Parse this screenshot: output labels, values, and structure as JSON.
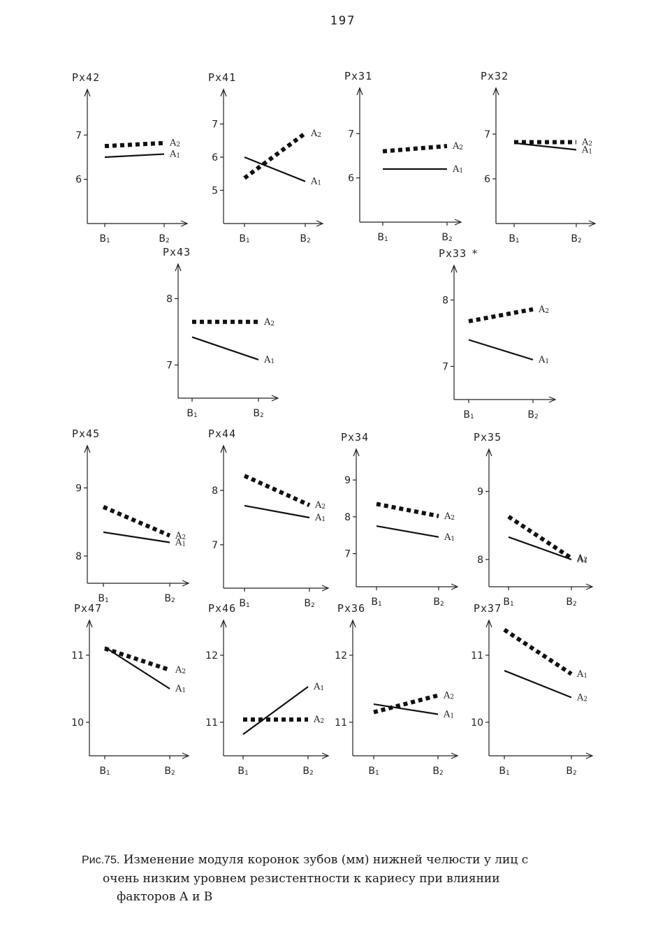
{
  "page_number": "197",
  "caption": {
    "figure_number": "Рис.75.",
    "line1": "Изменение модуля коронок зубов (мм) нижней челюсти у лиц с",
    "line2": "очень низким уровнем резистентности к кариесу при влиянии",
    "line3": "факторов А и В"
  },
  "chart_data": [
    {
      "type": "line",
      "title": "Px42",
      "categories": [
        "B1",
        "B2"
      ],
      "yticks": [
        6,
        7
      ],
      "ylim": [
        5.0,
        8.0
      ],
      "series": [
        {
          "name": "A2",
          "style": "dotted",
          "values": [
            6.75,
            6.82
          ]
        },
        {
          "name": "A1",
          "style": "solid",
          "values": [
            6.5,
            6.57
          ]
        }
      ]
    },
    {
      "type": "line",
      "title": "Px41",
      "categories": [
        "B1",
        "B2"
      ],
      "yticks": [
        5,
        6,
        7
      ],
      "ylim": [
        4.0,
        8.0
      ],
      "series": [
        {
          "name": "A2",
          "style": "dotted",
          "values": [
            5.37,
            6.72
          ]
        },
        {
          "name": "A1",
          "style": "solid",
          "values": [
            6.0,
            5.27
          ]
        }
      ]
    },
    {
      "type": "line",
      "title": "Px31",
      "categories": [
        "B1",
        "B2"
      ],
      "yticks": [
        6,
        7
      ],
      "ylim": [
        5.0,
        8.0
      ],
      "series": [
        {
          "name": "A2",
          "style": "dotted",
          "values": [
            6.6,
            6.72
          ]
        },
        {
          "name": "A1",
          "style": "solid",
          "values": [
            6.2,
            6.2
          ]
        }
      ]
    },
    {
      "type": "line",
      "title": "Px32",
      "categories": [
        "B1",
        "B2"
      ],
      "yticks": [
        6,
        7
      ],
      "ylim": [
        5.0,
        8.0
      ],
      "series": [
        {
          "name": "A2",
          "style": "dotted",
          "values": [
            6.82,
            6.82
          ]
        },
        {
          "name": "A1",
          "style": "solid",
          "values": [
            6.8,
            6.65
          ]
        }
      ]
    },
    {
      "type": "line",
      "title": "Px43",
      "categories": [
        "B1",
        "B2"
      ],
      "yticks": [
        7,
        8
      ],
      "ylim": [
        6.5,
        8.5
      ],
      "series": [
        {
          "name": "A2",
          "style": "dotted",
          "values": [
            7.65,
            7.65
          ]
        },
        {
          "name": "A1",
          "style": "solid",
          "values": [
            7.42,
            7.08
          ]
        }
      ]
    },
    {
      "type": "line",
      "title": "Px33",
      "marker": "*",
      "categories": [
        "B1",
        "B2"
      ],
      "yticks": [
        7,
        8
      ],
      "ylim": [
        6.5,
        8.5
      ],
      "series": [
        {
          "name": "A2",
          "style": "dotted",
          "values": [
            7.68,
            7.86
          ]
        },
        {
          "name": "A1",
          "style": "solid",
          "values": [
            7.4,
            7.1
          ]
        }
      ]
    },
    {
      "type": "line",
      "title": "Px45",
      "categories": [
        "B1",
        "B2"
      ],
      "yticks": [
        8,
        9
      ],
      "ylim": [
        7.6,
        9.6
      ],
      "series": [
        {
          "name": "A2",
          "style": "dotted",
          "values": [
            8.72,
            8.3
          ]
        },
        {
          "name": "A1",
          "style": "solid",
          "values": [
            8.35,
            8.2
          ]
        }
      ]
    },
    {
      "type": "line",
      "title": "Px44",
      "categories": [
        "B1",
        "B2"
      ],
      "yticks": [
        7,
        8
      ],
      "ylim": [
        6.2,
        8.8
      ],
      "series": [
        {
          "name": "A2",
          "style": "dotted",
          "values": [
            8.27,
            7.73
          ]
        },
        {
          "name": "A1",
          "style": "solid",
          "values": [
            7.72,
            7.5
          ]
        }
      ]
    },
    {
      "type": "line",
      "title": "Px34",
      "categories": [
        "B1",
        "B2"
      ],
      "yticks": [
        7,
        8,
        9
      ],
      "ylim": [
        6.1,
        9.8
      ],
      "series": [
        {
          "name": "A2",
          "style": "dotted",
          "values": [
            8.35,
            8.02
          ]
        },
        {
          "name": "A1",
          "style": "solid",
          "values": [
            7.75,
            7.45
          ]
        }
      ]
    },
    {
      "type": "line",
      "title": "Px35",
      "categories": [
        "B1",
        "B2"
      ],
      "yticks": [
        8,
        9
      ],
      "ylim": [
        7.6,
        9.6
      ],
      "series": [
        {
          "name": "A2",
          "style": "dotted",
          "values": [
            8.63,
            8.02
          ]
        },
        {
          "name": "A1",
          "style": "solid",
          "values": [
            8.33,
            8.0
          ]
        }
      ]
    },
    {
      "type": "line",
      "title": "Px47",
      "categories": [
        "B1",
        "B2"
      ],
      "yticks": [
        10,
        11
      ],
      "ylim": [
        9.5,
        11.5
      ],
      "series": [
        {
          "name": "A2",
          "style": "dotted",
          "values": [
            11.1,
            10.78
          ]
        },
        {
          "name": "A1",
          "style": "solid",
          "values": [
            11.12,
            10.5
          ]
        }
      ]
    },
    {
      "type": "line",
      "title": "Px46",
      "categories": [
        "B1",
        "B2"
      ],
      "yticks": [
        11,
        12
      ],
      "ylim": [
        10.5,
        12.5
      ],
      "series": [
        {
          "name": "A1",
          "style": "solid",
          "values": [
            10.82,
            11.53
          ]
        },
        {
          "name": "A2",
          "style": "dotted",
          "values": [
            11.04,
            11.04
          ]
        }
      ]
    },
    {
      "type": "line",
      "title": "Px36",
      "categories": [
        "B1",
        "B2"
      ],
      "yticks": [
        11,
        12
      ],
      "ylim": [
        10.5,
        12.5
      ],
      "series": [
        {
          "name": "A2",
          "style": "dotted",
          "values": [
            11.15,
            11.4
          ]
        },
        {
          "name": "A1",
          "style": "solid",
          "values": [
            11.27,
            11.12
          ]
        }
      ]
    },
    {
      "type": "line",
      "title": "Px37",
      "categories": [
        "B1",
        "B2"
      ],
      "yticks": [
        10,
        11
      ],
      "ylim": [
        9.5,
        11.5
      ],
      "series": [
        {
          "name": "A1",
          "style": "dotted",
          "values": [
            11.38,
            10.72
          ]
        },
        {
          "name": "A2",
          "style": "solid",
          "values": [
            10.77,
            10.37
          ]
        }
      ]
    }
  ]
}
